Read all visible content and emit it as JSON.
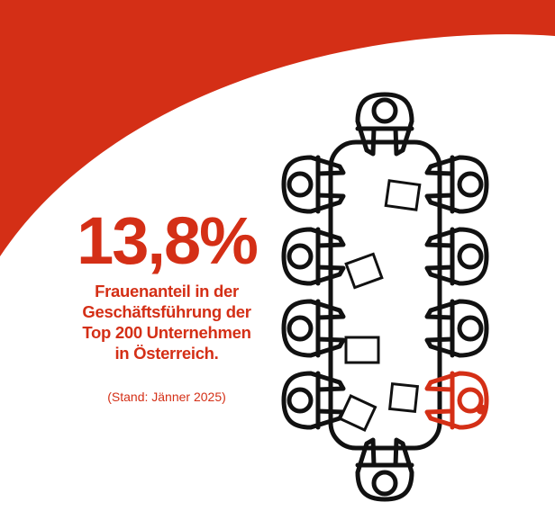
{
  "colors": {
    "accent": "#d42f16",
    "line": "#111111",
    "background": "#ffffff"
  },
  "headline": {
    "value": "13,8%"
  },
  "description": {
    "lines": [
      "Frauenanteil in der",
      "Geschäftsführung der",
      "Top 200 Unternehmen",
      "in Österreich."
    ]
  },
  "note": "(Stand: Jänner 2025)",
  "illustration": {
    "icon": "meeting-table-icon",
    "total_seats": 10,
    "highlighted_seats": 1
  }
}
